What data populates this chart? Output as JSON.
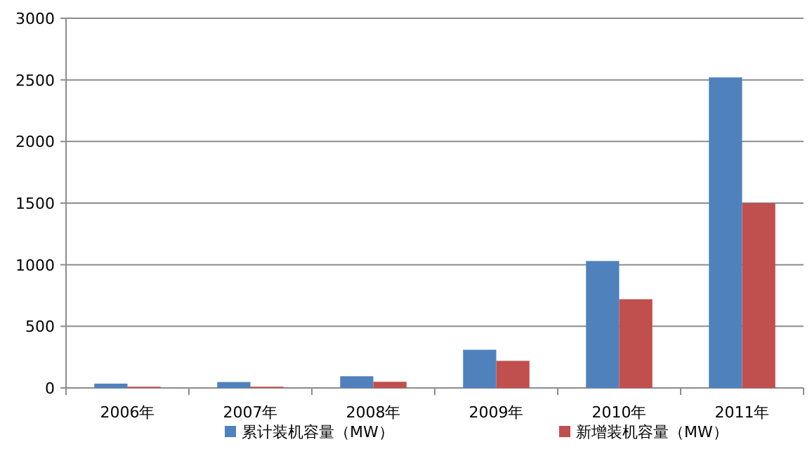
{
  "chart_data": {
    "type": "bar",
    "categories": [
      "2006年",
      "2007年",
      "2008年",
      "2009年",
      "2010年",
      "2011年"
    ],
    "series": [
      {
        "name": "累计装机容量（MW）",
        "color": "#4f81bd",
        "values": [
          35,
          48,
          95,
          310,
          1030,
          2520
        ]
      },
      {
        "name": "新增装机容量（MW）",
        "color": "#c0504d",
        "values": [
          10,
          10,
          50,
          220,
          720,
          1500
        ]
      }
    ],
    "ylim": [
      0,
      3000
    ],
    "yticks": [
      0,
      500,
      1000,
      1500,
      2000,
      2500,
      3000
    ],
    "grid": "y",
    "legend": "bottom"
  }
}
